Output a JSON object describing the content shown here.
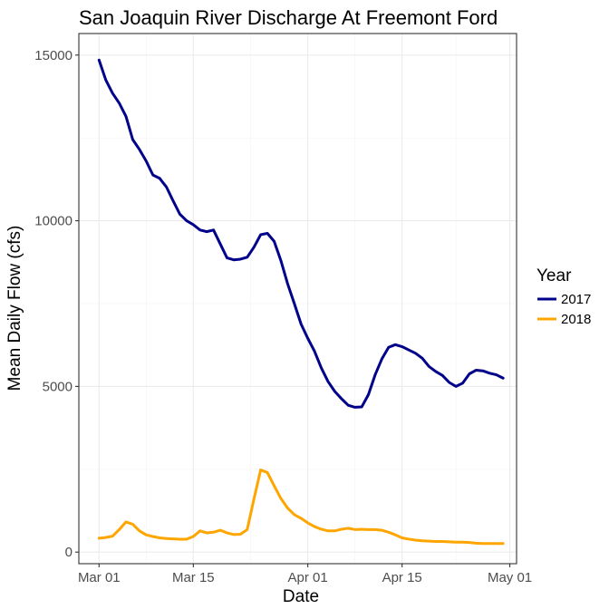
{
  "chart_data": {
    "type": "line",
    "title": "San Joaquin River Discharge At Freemont Ford",
    "xlabel": "Date",
    "ylabel": "Mean Daily Flow (cfs)",
    "x_tick_labels": [
      "Mar 01",
      "Mar 15",
      "Apr 01",
      "Apr 15",
      "May 01"
    ],
    "x_tick_dates": [
      "2000-03-01",
      "2000-03-15",
      "2000-04-01",
      "2000-04-15",
      "2000-05-01"
    ],
    "x_range": [
      "2000-02-27",
      "2000-05-02"
    ],
    "y_ticks": [
      0,
      5000,
      10000,
      15000
    ],
    "y_tick_labels": [
      "0",
      "5000",
      "10000",
      "15000"
    ],
    "ylim": [
      -350,
      15650
    ],
    "grid": true,
    "legend": {
      "title": "Year",
      "position": "right"
    },
    "series": [
      {
        "name": "2017",
        "color": "#00008B",
        "points": [
          [
            "2000-03-01",
            14850
          ],
          [
            "2000-03-02",
            14250
          ],
          [
            "2000-03-03",
            13850
          ],
          [
            "2000-03-04",
            13550
          ],
          [
            "2000-03-05",
            13150
          ],
          [
            "2000-03-06",
            12450
          ],
          [
            "2000-03-07",
            12150
          ],
          [
            "2000-03-08",
            11800
          ],
          [
            "2000-03-09",
            11380
          ],
          [
            "2000-03-10",
            11280
          ],
          [
            "2000-03-11",
            11020
          ],
          [
            "2000-03-12",
            10600
          ],
          [
            "2000-03-13",
            10200
          ],
          [
            "2000-03-14",
            10000
          ],
          [
            "2000-03-15",
            9880
          ],
          [
            "2000-03-16",
            9720
          ],
          [
            "2000-03-17",
            9670
          ],
          [
            "2000-03-18",
            9720
          ],
          [
            "2000-03-19",
            9300
          ],
          [
            "2000-03-20",
            8880
          ],
          [
            "2000-03-21",
            8820
          ],
          [
            "2000-03-22",
            8840
          ],
          [
            "2000-03-23",
            8900
          ],
          [
            "2000-03-24",
            9200
          ],
          [
            "2000-03-25",
            9580
          ],
          [
            "2000-03-26",
            9620
          ],
          [
            "2000-03-27",
            9380
          ],
          [
            "2000-03-28",
            8800
          ],
          [
            "2000-03-29",
            8100
          ],
          [
            "2000-03-30",
            7500
          ],
          [
            "2000-03-31",
            6880
          ],
          [
            "2000-04-01",
            6450
          ],
          [
            "2000-04-02",
            6060
          ],
          [
            "2000-04-03",
            5560
          ],
          [
            "2000-04-04",
            5150
          ],
          [
            "2000-04-05",
            4850
          ],
          [
            "2000-04-06",
            4630
          ],
          [
            "2000-04-07",
            4430
          ],
          [
            "2000-04-08",
            4370
          ],
          [
            "2000-04-09",
            4380
          ],
          [
            "2000-04-10",
            4750
          ],
          [
            "2000-04-11",
            5350
          ],
          [
            "2000-04-12",
            5830
          ],
          [
            "2000-04-13",
            6180
          ],
          [
            "2000-04-14",
            6260
          ],
          [
            "2000-04-15",
            6200
          ],
          [
            "2000-04-16",
            6100
          ],
          [
            "2000-04-17",
            6000
          ],
          [
            "2000-04-18",
            5850
          ],
          [
            "2000-04-19",
            5600
          ],
          [
            "2000-04-20",
            5450
          ],
          [
            "2000-04-21",
            5330
          ],
          [
            "2000-04-22",
            5120
          ],
          [
            "2000-04-23",
            5000
          ],
          [
            "2000-04-24",
            5100
          ],
          [
            "2000-04-25",
            5380
          ],
          [
            "2000-04-26",
            5490
          ],
          [
            "2000-04-27",
            5470
          ],
          [
            "2000-04-28",
            5400
          ],
          [
            "2000-04-29",
            5350
          ],
          [
            "2000-04-30",
            5250
          ]
        ]
      },
      {
        "name": "2018",
        "color": "#FFA500",
        "points": [
          [
            "2000-03-01",
            420
          ],
          [
            "2000-03-02",
            440
          ],
          [
            "2000-03-03",
            480
          ],
          [
            "2000-03-04",
            680
          ],
          [
            "2000-03-05",
            910
          ],
          [
            "2000-03-06",
            840
          ],
          [
            "2000-03-07",
            640
          ],
          [
            "2000-03-08",
            520
          ],
          [
            "2000-03-09",
            470
          ],
          [
            "2000-03-10",
            430
          ],
          [
            "2000-03-11",
            410
          ],
          [
            "2000-03-12",
            400
          ],
          [
            "2000-03-13",
            390
          ],
          [
            "2000-03-14",
            390
          ],
          [
            "2000-03-15",
            470
          ],
          [
            "2000-03-16",
            640
          ],
          [
            "2000-03-17",
            580
          ],
          [
            "2000-03-18",
            600
          ],
          [
            "2000-03-19",
            660
          ],
          [
            "2000-03-20",
            580
          ],
          [
            "2000-03-21",
            530
          ],
          [
            "2000-03-22",
            540
          ],
          [
            "2000-03-23",
            680
          ],
          [
            "2000-03-24",
            1600
          ],
          [
            "2000-03-25",
            2480
          ],
          [
            "2000-03-26",
            2400
          ],
          [
            "2000-03-27",
            2000
          ],
          [
            "2000-03-28",
            1620
          ],
          [
            "2000-03-29",
            1330
          ],
          [
            "2000-03-30",
            1130
          ],
          [
            "2000-03-31",
            1020
          ],
          [
            "2000-04-01",
            880
          ],
          [
            "2000-04-02",
            770
          ],
          [
            "2000-04-03",
            690
          ],
          [
            "2000-04-04",
            640
          ],
          [
            "2000-04-05",
            640
          ],
          [
            "2000-04-06",
            690
          ],
          [
            "2000-04-07",
            720
          ],
          [
            "2000-04-08",
            680
          ],
          [
            "2000-04-09",
            690
          ],
          [
            "2000-04-10",
            680
          ],
          [
            "2000-04-11",
            680
          ],
          [
            "2000-04-12",
            660
          ],
          [
            "2000-04-13",
            600
          ],
          [
            "2000-04-14",
            520
          ],
          [
            "2000-04-15",
            430
          ],
          [
            "2000-04-16",
            390
          ],
          [
            "2000-04-17",
            360
          ],
          [
            "2000-04-18",
            340
          ],
          [
            "2000-04-19",
            330
          ],
          [
            "2000-04-20",
            320
          ],
          [
            "2000-04-21",
            320
          ],
          [
            "2000-04-22",
            310
          ],
          [
            "2000-04-23",
            300
          ],
          [
            "2000-04-24",
            300
          ],
          [
            "2000-04-25",
            290
          ],
          [
            "2000-04-26",
            270
          ],
          [
            "2000-04-27",
            260
          ],
          [
            "2000-04-28",
            260
          ],
          [
            "2000-04-29",
            260
          ],
          [
            "2000-04-30",
            260
          ]
        ]
      }
    ]
  }
}
